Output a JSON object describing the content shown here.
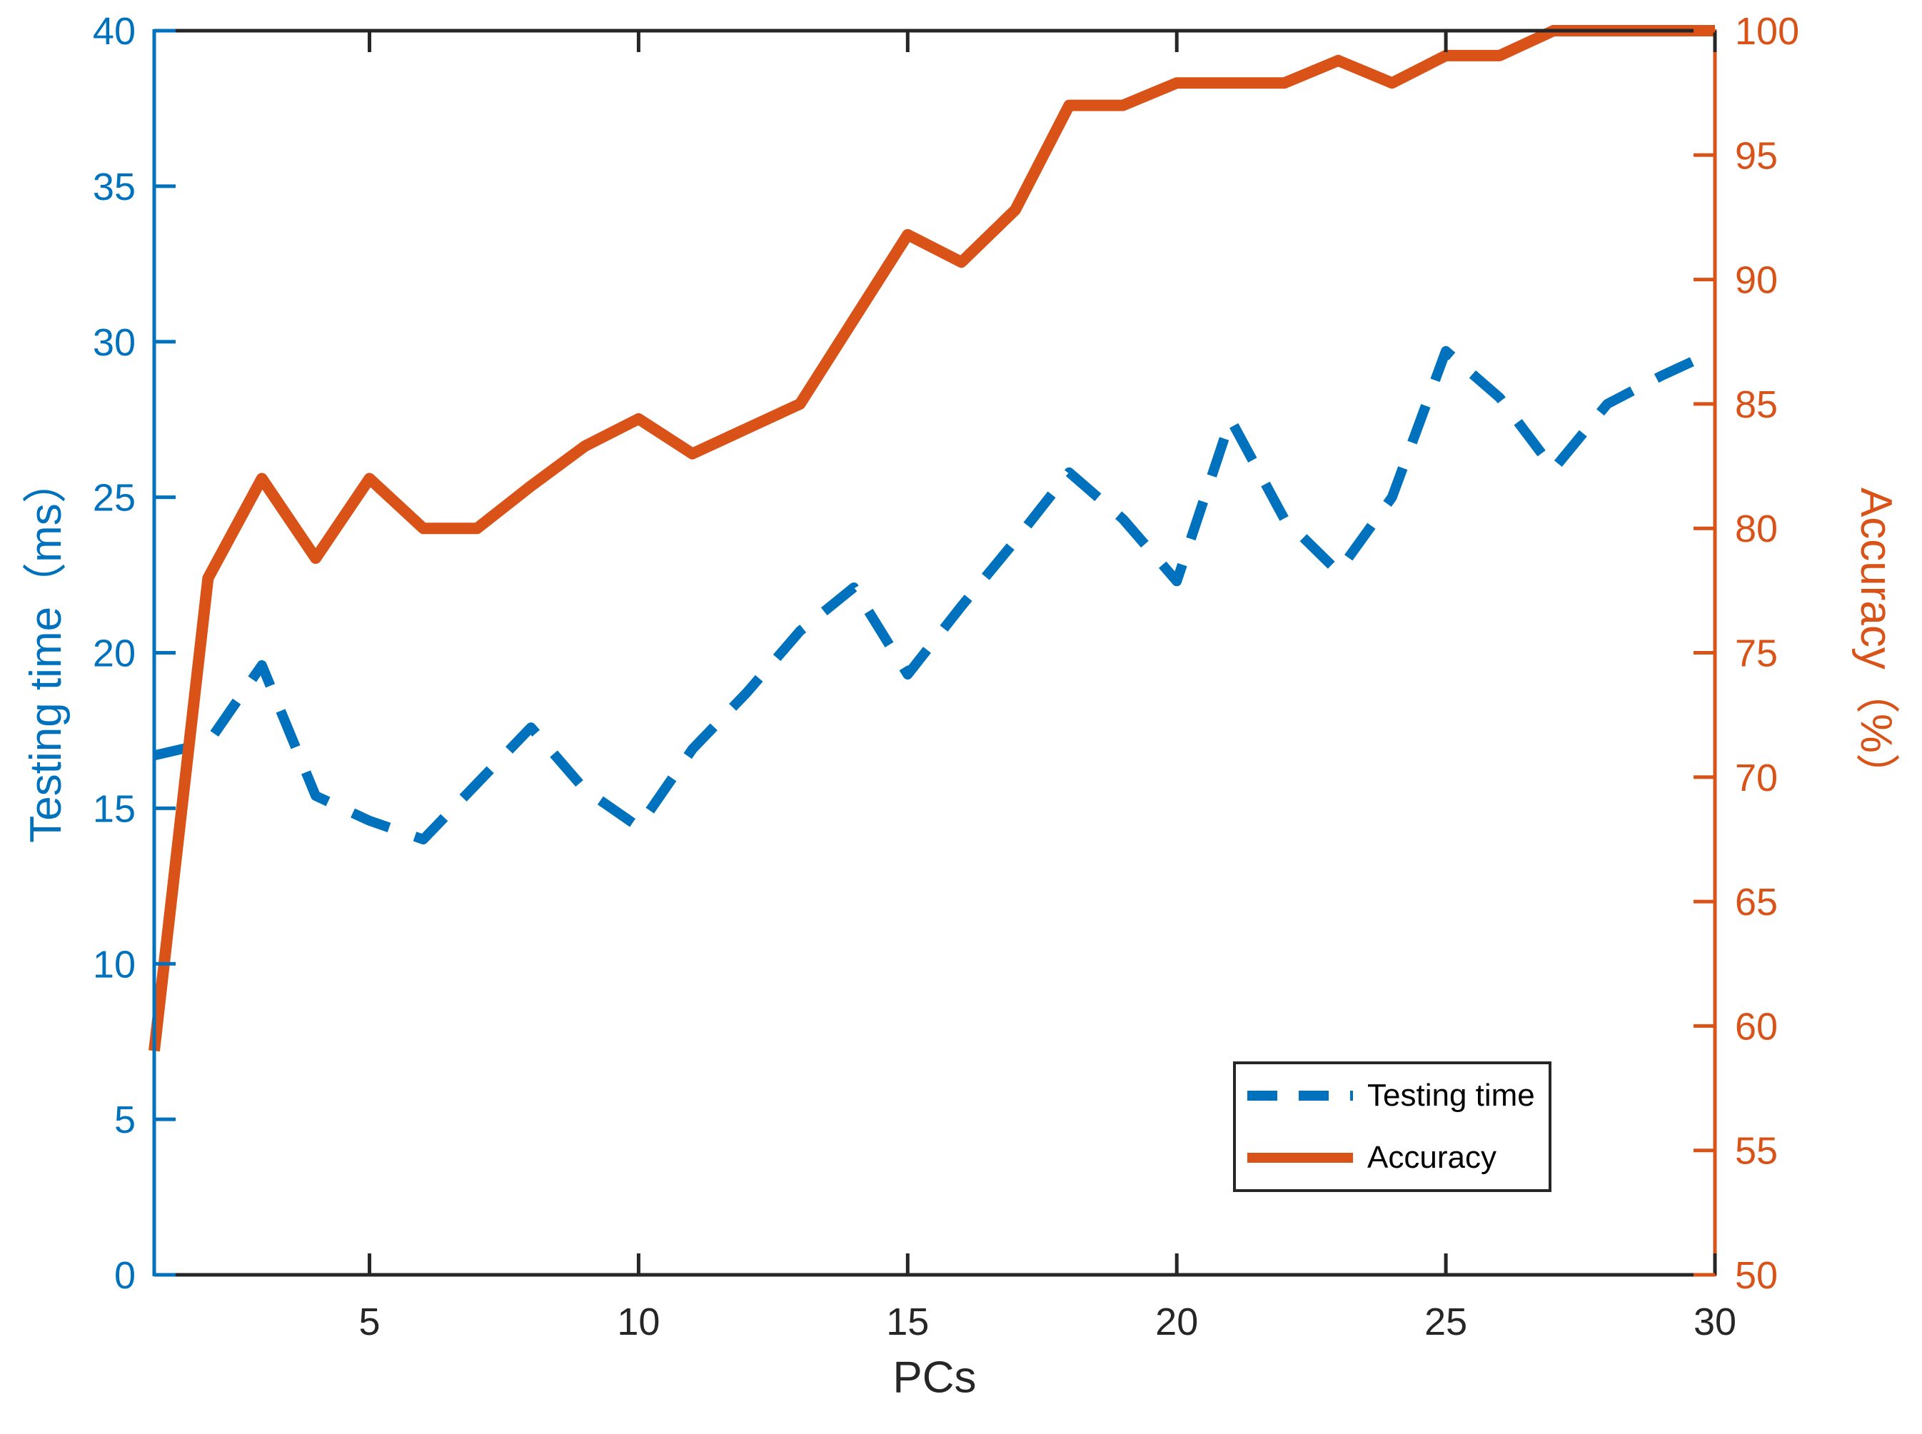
{
  "chart_data": {
    "type": "line",
    "title": "",
    "xlabel": "PCs",
    "left_ylabel": "Testing time（ms）",
    "right_ylabel": "Accuracy（%）",
    "x": [
      1,
      2,
      3,
      4,
      5,
      6,
      7,
      8,
      9,
      10,
      11,
      12,
      13,
      14,
      15,
      16,
      17,
      18,
      19,
      20,
      21,
      22,
      23,
      24,
      25,
      26,
      27,
      28,
      29,
      30
    ],
    "xlim": [
      1,
      30
    ],
    "x_ticks": [
      5,
      10,
      15,
      20,
      25,
      30
    ],
    "left_ylim": [
      0,
      40
    ],
    "left_yticks": [
      0,
      5,
      10,
      15,
      20,
      25,
      30,
      35,
      40
    ],
    "right_ylim": [
      50,
      100
    ],
    "right_yticks": [
      50,
      55,
      60,
      65,
      70,
      75,
      80,
      85,
      90,
      95,
      100
    ],
    "grid": false,
    "legend_position": "southeast",
    "series": [
      {
        "name": "Testing time",
        "axis": "left",
        "style": "dashed",
        "color": "#0072BD",
        "values": [
          16.7,
          17.1,
          19.6,
          15.4,
          14.6,
          14.0,
          15.8,
          17.6,
          15.6,
          14.4,
          16.9,
          18.7,
          20.7,
          22.1,
          19.3,
          21.5,
          23.6,
          25.8,
          24.3,
          22.3,
          27.5,
          24.3,
          22.6,
          25.0,
          29.7,
          28.2,
          25.9,
          28.0,
          28.9,
          29.7
        ]
      },
      {
        "name": "Accuracy",
        "axis": "right",
        "style": "solid",
        "color": "#D95319",
        "values": [
          59.0,
          78.0,
          82.0,
          78.8,
          82.0,
          80.0,
          80.0,
          81.7,
          83.3,
          84.4,
          83.0,
          84.0,
          85.0,
          88.4,
          91.8,
          90.7,
          92.8,
          97.0,
          97.0,
          97.9,
          97.9,
          97.9,
          98.8,
          97.9,
          99.0,
          99.0,
          100.0,
          100.0,
          100.0,
          100.0
        ]
      }
    ],
    "legend": {
      "entries": [
        "Testing time",
        "Accuracy"
      ]
    }
  },
  "colors": {
    "left_axis": "#0072BD",
    "right_axis": "#D95319",
    "frame": "#262626",
    "background": "#ffffff"
  }
}
